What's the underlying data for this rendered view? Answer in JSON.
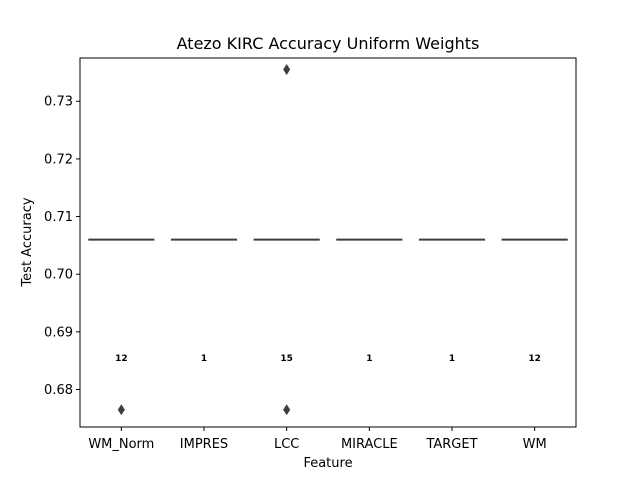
{
  "chart_data": {
    "type": "box",
    "title": "Atezo KIRC Accuracy Uniform Weights",
    "xlabel": "Feature",
    "ylabel": "Test Accuracy",
    "ylim": [
      0.6735,
      0.7375
    ],
    "yticks": [
      0.68,
      0.69,
      0.7,
      0.71,
      0.72,
      0.73
    ],
    "ytick_labels": [
      "0.68",
      "0.69",
      "0.70",
      "0.71",
      "0.72",
      "0.73"
    ],
    "categories": [
      "WM_Norm",
      "IMPRES",
      "LCC",
      "MIRACLE",
      "TARGET",
      "WM"
    ],
    "median": [
      0.706,
      0.706,
      0.706,
      0.706,
      0.706,
      0.706
    ],
    "counts": [
      "12",
      "1",
      "15",
      "1",
      "1",
      "12"
    ],
    "count_label_y": 0.6855,
    "outliers": [
      [
        0.6765
      ],
      [],
      [
        0.7355,
        0.6765
      ],
      [],
      [],
      []
    ],
    "grid": false,
    "colors": {
      "median": "#3d3d3d",
      "outlier": "#3d3d3d",
      "axes": "#000000"
    }
  }
}
